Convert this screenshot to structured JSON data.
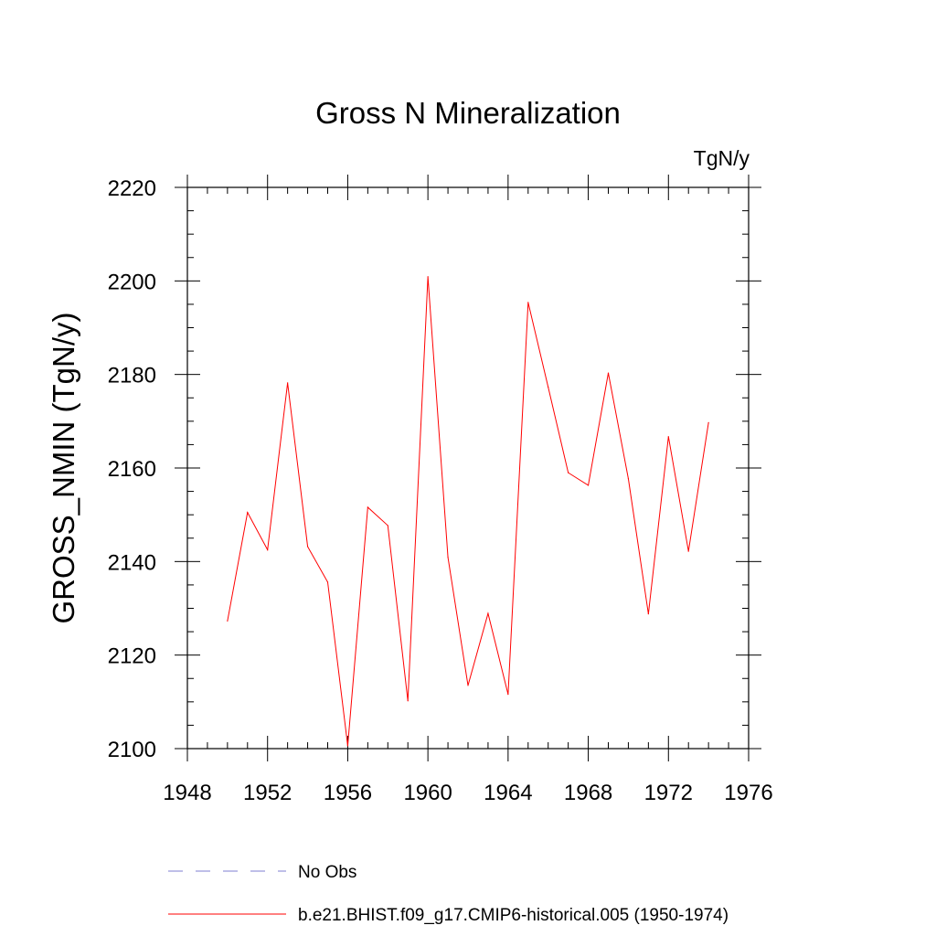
{
  "chart_data": {
    "type": "line",
    "title": "Gross N Mineralization",
    "units_label": "TgN/y",
    "ylabel": "GROSS_NMIN  (TgN/y)",
    "xlabel": "",
    "xlim": [
      1948,
      1976
    ],
    "ylim": [
      2100,
      2220
    ],
    "x_major_ticks": [
      1948,
      1952,
      1956,
      1960,
      1964,
      1968,
      1972,
      1976
    ],
    "y_major_ticks": [
      2100,
      2120,
      2140,
      2160,
      2180,
      2200,
      2220
    ],
    "grid": false,
    "legend_position": "bottom",
    "series": [
      {
        "name": "b.e21.BHIST.f09_g17.CMIP6-historical.005 (1950-1974)",
        "color": "#ff0000",
        "style": "solid",
        "x": [
          1950,
          1951,
          1952,
          1953,
          1954,
          1955,
          1956,
          1957,
          1958,
          1959,
          1960,
          1961,
          1962,
          1963,
          1964,
          1965,
          1966,
          1967,
          1968,
          1969,
          1970,
          1971,
          1972,
          1973,
          1974
        ],
        "y": [
          2127.3,
          2150.5,
          2142.5,
          2178.2,
          2143.2,
          2135.6,
          2100.6,
          2151.6,
          2147.7,
          2110.2,
          2200.9,
          2140.9,
          2113.5,
          2128.9,
          2111.6,
          2195.4,
          2177.3,
          2159.0,
          2156.3,
          2180.3,
          2157.7,
          2128.8,
          2166.7,
          2142.2,
          2169.7
        ]
      }
    ],
    "legend": [
      {
        "label": "No Obs",
        "color": "#7f7fd0",
        "style": "dashed"
      },
      {
        "label": "b.e21.BHIST.f09_g17.CMIP6-historical.005 (1950-1974)",
        "color": "#ff0000",
        "style": "solid"
      }
    ]
  }
}
